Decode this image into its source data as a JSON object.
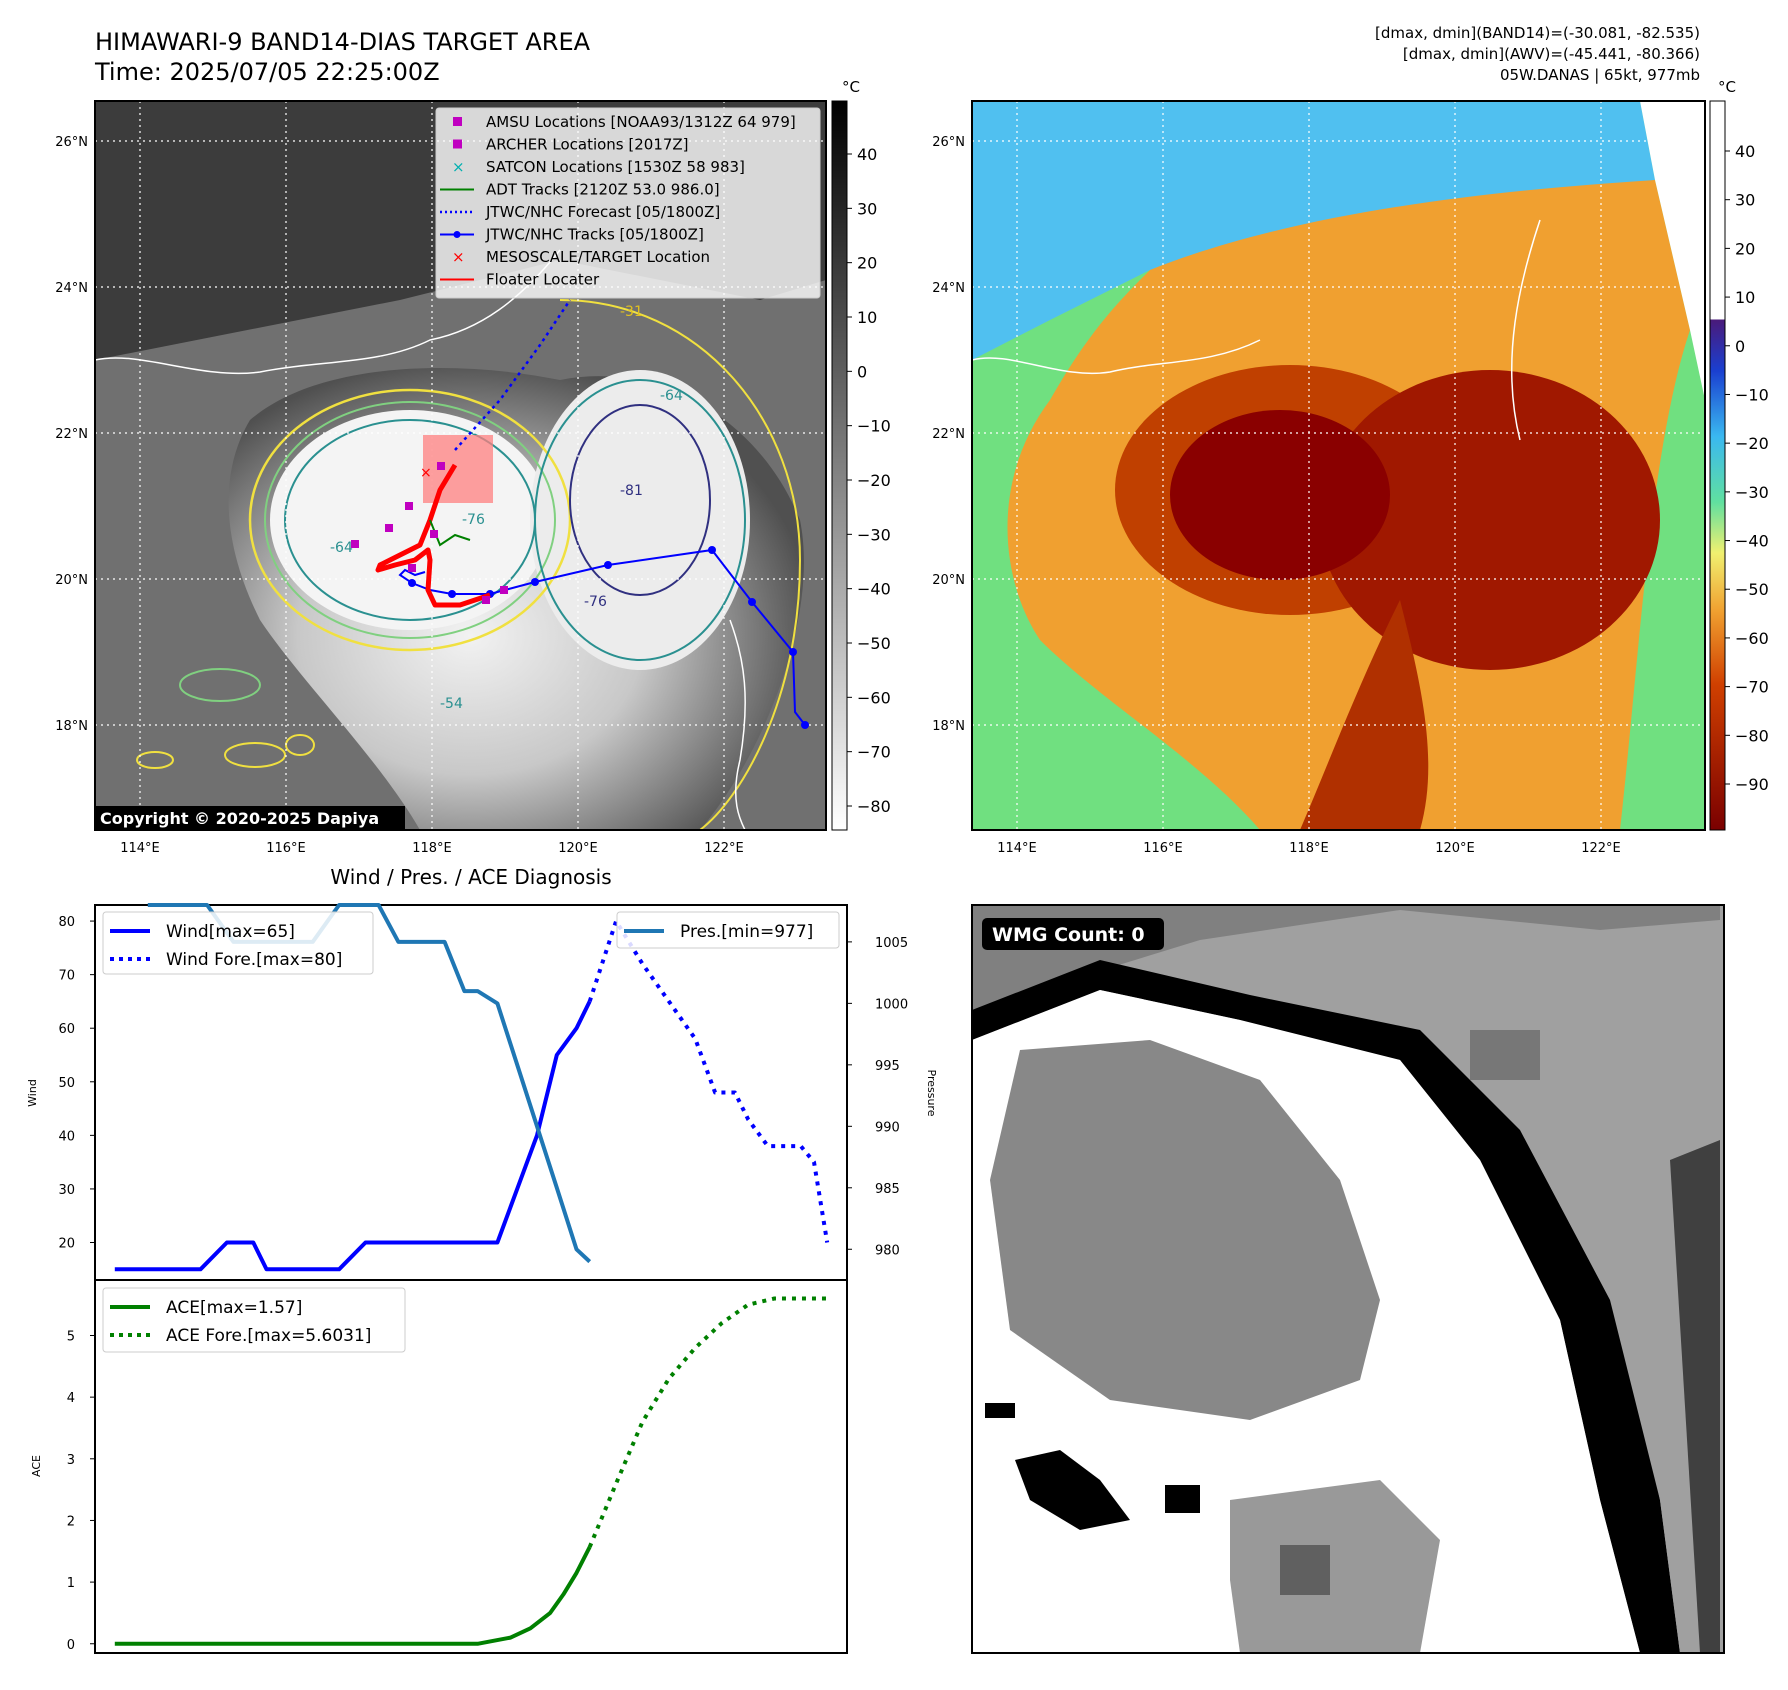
{
  "header": {
    "title": "HIMAWARI-9 BAND14-DIAS TARGET AREA",
    "time": "Time: 2025/07/05 22:25:00Z",
    "info_line1": "[dmax, dmin](BAND14)=(-30.081, -82.535)",
    "info_line2": "[dmax, dmin](AWV)=(-45.441, -80.366)",
    "info_line3": "05W.DANAS | 65kt, 977mb"
  },
  "colors": {
    "wind": "#0000ff",
    "pressure": "#1f77b4",
    "ace": "#008000",
    "track": "#0000ff",
    "floater": "#ff0000",
    "amsu": "#c000c0",
    "satcon": "#00b0b0"
  },
  "map_ir": {
    "colorbar_unit": "°C",
    "colorbar_ticks": [
      "40",
      "30",
      "20",
      "10",
      "0",
      "−10",
      "−20",
      "−30",
      "−40",
      "−50",
      "−60",
      "−70",
      "−80"
    ],
    "copyright": "Copyright © 2020-2025 Dapiya",
    "lon_ticks": [
      "114°E",
      "116°E",
      "118°E",
      "120°E",
      "122°E"
    ],
    "lat_ticks": [
      "26°N",
      "24°N",
      "22°N",
      "20°N",
      "18°N"
    ],
    "legend": [
      {
        "label": "AMSU Locations [NOAA93/1312Z 64 979]",
        "marker": "square",
        "color": "#c000c0"
      },
      {
        "label": "ARCHER Locations [2017Z]",
        "marker": "square",
        "color": "#c000c0"
      },
      {
        "label": "SATCON Locations [1530Z 58 983]",
        "marker": "x",
        "color": "#00b0b0"
      },
      {
        "label": "ADT Tracks [2120Z 53.0 986.0]",
        "marker": "line",
        "color": "#008000"
      },
      {
        "label": "JTWC/NHC Forecast [05/1800Z]",
        "marker": "dotted",
        "color": "#0000ff"
      },
      {
        "label": "JTWC/NHC Tracks [05/1800Z]",
        "marker": "line-dot",
        "color": "#0000ff"
      },
      {
        "label": "MESOSCALE/TARGET Location",
        "marker": "x",
        "color": "#ff0000"
      },
      {
        "label": "Floater Locater",
        "marker": "line",
        "color": "#ff0000"
      }
    ],
    "contour_labels": [
      "-64",
      "-76",
      "-81",
      "-76",
      "-64",
      "-54",
      "-31",
      "-64",
      "-31",
      "-54",
      "-31"
    ]
  },
  "map_awv": {
    "colorbar_unit": "°C",
    "colorbar_ticks": [
      "40",
      "30",
      "20",
      "10",
      "0",
      "−10",
      "−20",
      "−30",
      "−40",
      "−50",
      "−60",
      "−70",
      "−80",
      "−90"
    ],
    "lon_ticks": [
      "114°E",
      "116°E",
      "118°E",
      "120°E",
      "122°E"
    ],
    "lat_ticks": [
      "26°N",
      "24°N",
      "22°N",
      "20°N",
      "18°N"
    ]
  },
  "wmg": {
    "count_label": "WMG Count: 0"
  },
  "chart_data": [
    {
      "type": "line",
      "title": "Wind / Pres. / ACE Diagnosis",
      "ylabel": "Wind",
      "ylabel_right": "Pressure",
      "ylim": [
        13,
        83
      ],
      "ylim_right": [
        977.5,
        1008
      ],
      "yticks": [
        20,
        30,
        40,
        50,
        60,
        70,
        80
      ],
      "yticks_right": [
        980,
        985,
        990,
        995,
        1000,
        1005
      ],
      "legend_left": [
        "Wind[max=65]",
        "Wind Fore.[max=80]"
      ],
      "legend_right": [
        "Pres.[min=977]"
      ],
      "series": [
        {
          "name": "Wind[max=65]",
          "style": "solid",
          "color": "#0000ff",
          "x": [
            0,
            13,
            17,
            21,
            23,
            34,
            38,
            51,
            58,
            61,
            64,
            67,
            70,
            72
          ],
          "y": [
            15,
            15,
            20,
            20,
            15,
            15,
            20,
            20,
            20,
            30,
            40,
            55,
            60,
            65
          ]
        },
        {
          "name": "Wind Fore.[max=80]",
          "style": "dotted",
          "color": "#0000ff",
          "x": [
            72,
            76,
            80,
            84,
            88,
            91,
            94,
            96,
            99,
            101,
            104,
            106,
            108
          ],
          "y": [
            65,
            80,
            72,
            65,
            58,
            48,
            48,
            43,
            38,
            38,
            38,
            35,
            20
          ]
        },
        {
          "name": "Pres.[min=977]",
          "style": "solid",
          "color": "#1f77b4",
          "axis": "right",
          "x": [
            5,
            10,
            14,
            18,
            22,
            26,
            30,
            34,
            37,
            40,
            43,
            47,
            50,
            53,
            55,
            58,
            61,
            64,
            67,
            70,
            72
          ],
          "y": [
            1008,
            1008,
            1008,
            1005,
            1005,
            1005,
            1005,
            1008,
            1008,
            1008,
            1005,
            1005,
            1005,
            1001,
            1001,
            1000,
            995,
            990,
            985,
            980,
            979
          ]
        }
      ]
    },
    {
      "type": "line",
      "ylabel": "ACE",
      "ylim": [
        -0.15,
        5.9
      ],
      "yticks": [
        0,
        1,
        2,
        3,
        4,
        5
      ],
      "legend": [
        "ACE[max=1.57]",
        "ACE Fore.[max=5.6031]"
      ],
      "series": [
        {
          "name": "ACE[max=1.57]",
          "style": "solid",
          "color": "#008000",
          "x": [
            0,
            20,
            40,
            55,
            60,
            63,
            66,
            68,
            70,
            72
          ],
          "y": [
            0,
            0,
            0,
            0,
            0.1,
            0.25,
            0.5,
            0.8,
            1.15,
            1.57
          ]
        },
        {
          "name": "ACE Fore.[max=5.6031]",
          "style": "dotted",
          "color": "#008000",
          "x": [
            72,
            76,
            80,
            84,
            88,
            92,
            96,
            100,
            104,
            108
          ],
          "y": [
            1.57,
            2.6,
            3.6,
            4.3,
            4.8,
            5.2,
            5.5,
            5.6,
            5.6,
            5.6
          ]
        }
      ]
    }
  ]
}
